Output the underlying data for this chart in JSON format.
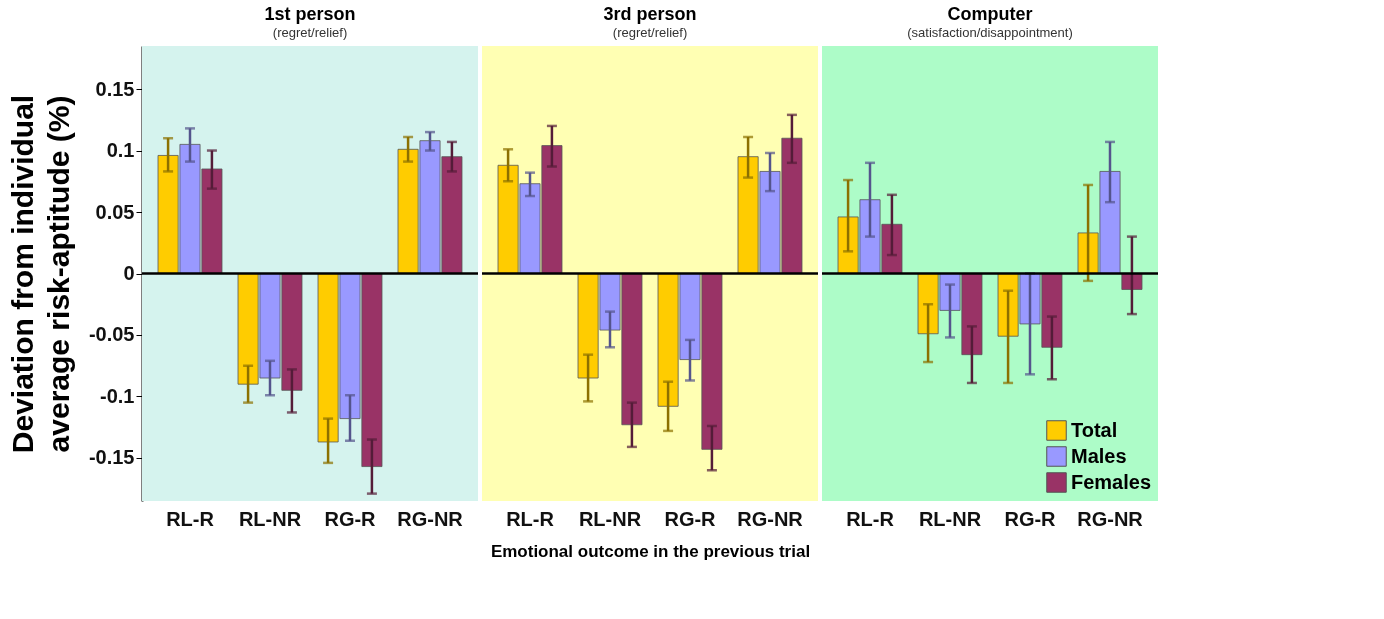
{
  "chart_data": [
    {
      "type": "bar",
      "title": "1st person",
      "subtitle": "(regret/relief)",
      "ylabel": "Deviation from individual average risk-aptitude (%)",
      "categories": [
        "RL-R",
        "RL-NR",
        "RG-R",
        "RG-NR"
      ],
      "ylim": [
        -0.185,
        0.185
      ],
      "yticks": [
        -0.15,
        -0.1,
        -0.05,
        0,
        0.05,
        0.1,
        0.15
      ],
      "grid": false,
      "series": [
        {
          "color": "#ffcc00",
          "values": [
            0.096,
            -0.09,
            -0.137,
            0.101
          ],
          "errors": [
            [
              0.083,
              0.11
            ],
            [
              -0.105,
              -0.075
            ],
            [
              -0.154,
              -0.118
            ],
            [
              0.091,
              0.111
            ]
          ]
        },
        {
          "color": "#9999ff",
          "values": [
            0.105,
            -0.085,
            -0.118,
            0.108
          ],
          "errors": [
            [
              0.091,
              0.118
            ],
            [
              -0.099,
              -0.071
            ],
            [
              -0.136,
              -0.099
            ],
            [
              0.1,
              0.115
            ]
          ]
        },
        {
          "color": "#993366",
          "values": [
            0.085,
            -0.095,
            -0.157,
            0.095
          ],
          "errors": [
            [
              0.069,
              0.1
            ],
            [
              -0.113,
              -0.078
            ],
            [
              -0.179,
              -0.135
            ],
            [
              0.083,
              0.107
            ]
          ]
        }
      ],
      "ref_lines": [
        {
          "axis": "y",
          "value": 0,
          "color": "#000000"
        }
      ],
      "bands": [
        {
          "axis": "y",
          "from": -0.185,
          "to": 0.185,
          "color": "#d5f3ee"
        }
      ]
    },
    {
      "type": "bar",
      "title": "3rd person",
      "subtitle": "(regret/relief)",
      "xlabel": "Emotional outcome in the previous trial",
      "categories": [
        "RL-R",
        "RL-NR",
        "RG-R",
        "RG-NR"
      ],
      "ylim": [
        -0.185,
        0.185
      ],
      "yticks": [
        -0.15,
        -0.1,
        -0.05,
        0,
        0.05,
        0.1,
        0.15
      ],
      "grid": false,
      "tick_labels": "x",
      "series": [
        {
          "color": "#ffcc00",
          "values": [
            0.088,
            -0.085,
            -0.108,
            0.095
          ],
          "errors": [
            [
              0.075,
              0.101
            ],
            [
              -0.104,
              -0.066
            ],
            [
              -0.128,
              -0.088
            ],
            [
              0.078,
              0.111
            ]
          ]
        },
        {
          "color": "#9999ff",
          "values": [
            0.073,
            -0.046,
            -0.07,
            0.083
          ],
          "errors": [
            [
              0.063,
              0.082
            ],
            [
              -0.06,
              -0.031
            ],
            [
              -0.087,
              -0.054
            ],
            [
              0.067,
              0.098
            ]
          ]
        },
        {
          "color": "#993366",
          "values": [
            0.104,
            -0.123,
            -0.143,
            0.11
          ],
          "errors": [
            [
              0.087,
              0.12
            ],
            [
              -0.141,
              -0.105
            ],
            [
              -0.16,
              -0.124
            ],
            [
              0.09,
              0.129
            ]
          ]
        }
      ],
      "ref_lines": [
        {
          "axis": "y",
          "value": 0,
          "color": "#000000"
        }
      ],
      "bands": [
        {
          "axis": "y",
          "from": -0.185,
          "to": 0.185,
          "color": "#ffffb3"
        }
      ]
    },
    {
      "type": "bar",
      "title": "Computer",
      "subtitle": "(satisfaction/disappointment)",
      "categories": [
        "RL-R",
        "RL-NR",
        "RG-R",
        "RG-NR"
      ],
      "ylim": [
        -0.185,
        0.185
      ],
      "yticks": [
        -0.15,
        -0.1,
        -0.05,
        0,
        0.05,
        0.1,
        0.15
      ],
      "grid": false,
      "tick_labels": "x",
      "legend": "bottom right",
      "series": [
        {
          "name": "Total",
          "color": "#ffcc00",
          "values": [
            0.046,
            -0.049,
            -0.051,
            0.033
          ],
          "errors": [
            [
              0.018,
              0.076
            ],
            [
              -0.072,
              -0.025
            ],
            [
              -0.089,
              -0.014
            ],
            [
              -0.006,
              0.072
            ]
          ]
        },
        {
          "name": "Males",
          "color": "#9999ff",
          "values": [
            0.06,
            -0.03,
            -0.041,
            0.083
          ],
          "errors": [
            [
              0.03,
              0.09
            ],
            [
              -0.052,
              -0.009
            ],
            [
              -0.082,
              0
            ],
            [
              0.058,
              0.107
            ]
          ]
        },
        {
          "name": "Females",
          "color": "#993366",
          "values": [
            0.04,
            -0.066,
            -0.06,
            -0.013
          ],
          "errors": [
            [
              0.015,
              0.064
            ],
            [
              -0.089,
              -0.043
            ],
            [
              -0.086,
              -0.035
            ],
            [
              -0.033,
              0.03
            ]
          ]
        }
      ],
      "ref_lines": [
        {
          "axis": "y",
          "value": 0,
          "color": "#000000"
        }
      ],
      "bands": [
        {
          "axis": "y",
          "from": -0.185,
          "to": 0.185,
          "color": "#adfcc8"
        }
      ]
    }
  ]
}
